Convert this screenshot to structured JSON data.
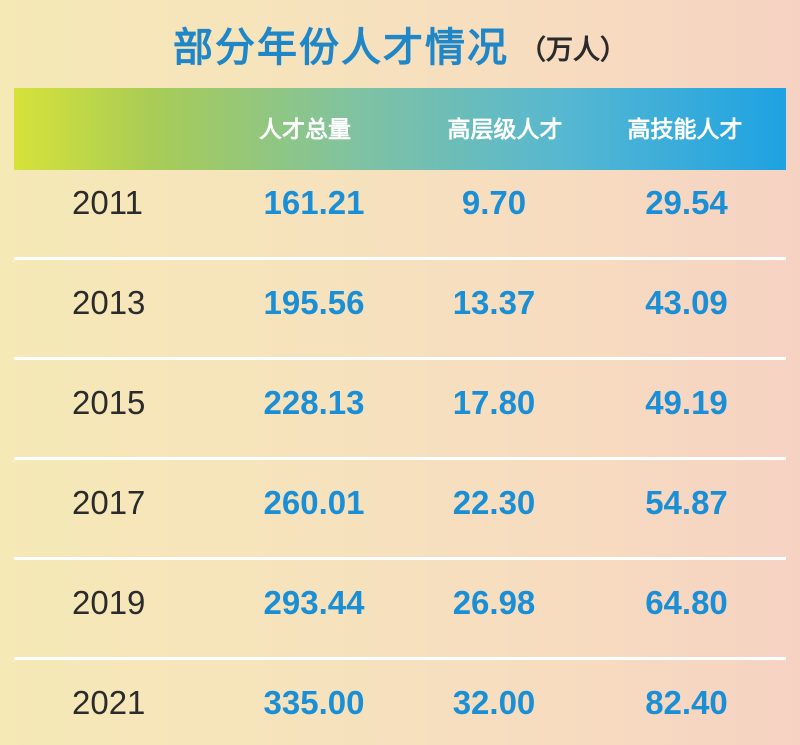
{
  "chart_data": {
    "type": "table",
    "title": "部分年份人才情况",
    "subtitle": "（万人）",
    "columns": [
      "人才总量",
      "高层级人才",
      "高技能人才"
    ],
    "rows": [
      {
        "year": "2011",
        "values": [
          "161.21",
          "9.70",
          "29.54"
        ]
      },
      {
        "year": "2013",
        "values": [
          "195.56",
          "13.37",
          "43.09"
        ]
      },
      {
        "year": "2015",
        "values": [
          "228.13",
          "17.80",
          "49.19"
        ]
      },
      {
        "year": "2017",
        "values": [
          "260.01",
          "22.30",
          "54.87"
        ]
      },
      {
        "year": "2019",
        "values": [
          "293.44",
          "26.98",
          "64.80"
        ]
      },
      {
        "year": "2021",
        "values": [
          "335.00",
          "32.00",
          "82.40"
        ]
      }
    ]
  },
  "colors": {
    "title": "#1f86c8",
    "value": "#1a8fd6",
    "year": "#2b2b2b",
    "header_text": "#ffffff",
    "header_gradient_start": "#d6e23a",
    "header_gradient_end": "#1ea2e2"
  }
}
